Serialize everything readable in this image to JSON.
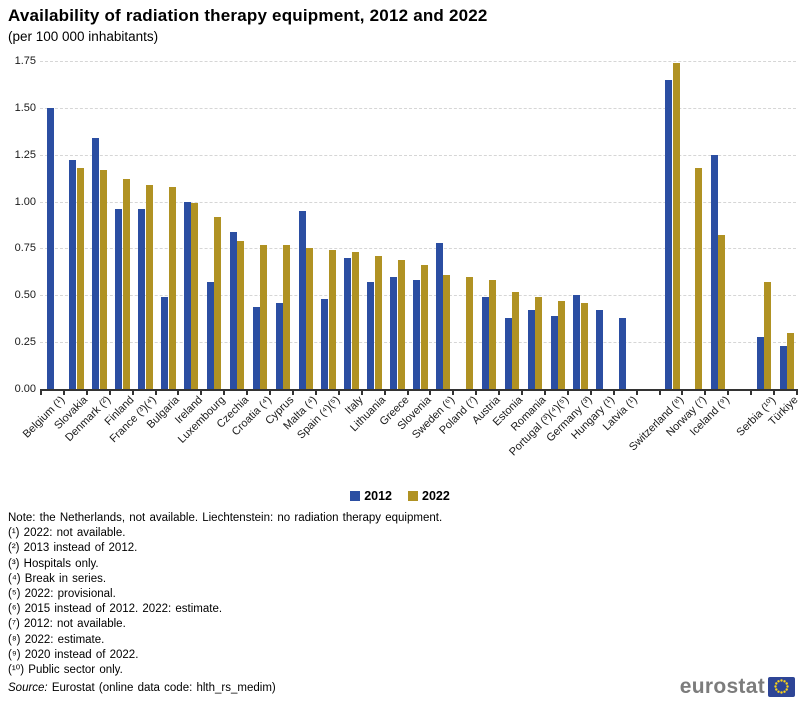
{
  "title": "Availability of radiation therapy equipment, 2012 and 2022",
  "subtitle": "(per 100 000 inhabitants)",
  "colors": {
    "series2012": "#2B4EA2",
    "series2022": "#B09223",
    "grid": "#d6d6d6",
    "axis": "#333333",
    "logo_gray": "#7c7c7c",
    "flag_blue": "#2E4596",
    "star_yellow": "#FFD617"
  },
  "chart_data": {
    "type": "bar",
    "title": "Availability of radiation therapy equipment, 2012 and 2022",
    "subtitle": "(per 100 000 inhabitants)",
    "xlabel": "",
    "ylabel": "",
    "ylim": [
      0,
      1.75
    ],
    "y_ticks": [
      0,
      0.25,
      0.5,
      0.75,
      1,
      1.25,
      1.5,
      1.75
    ],
    "y_tick_labels": [
      "0.00",
      "0.25",
      "0.50",
      "0.75",
      "1.00",
      "1.25",
      "1.50",
      "1.75"
    ],
    "grid": true,
    "legend_position": "bottom",
    "categories": [
      "Belgium (¹)",
      "Slovakia",
      "Denmark (²)",
      "Finland",
      "France (³)(⁴)",
      "Bulgaria",
      "Ireland",
      "Luxembourg",
      "Czechia",
      "Croatia (⁴)",
      "Cyprus",
      "Malta (⁴)",
      "Spain (⁴)(⁵)",
      "Italy",
      "Lithuania",
      "Greece",
      "Slovenia",
      "Sweden (⁶)",
      "Poland (⁷)",
      "Austria",
      "Estonia",
      "Romania",
      "Portugal (³)(⁴)(⁵)",
      "Germany (³)",
      "Hungary (¹)",
      "Latvia (¹)",
      "Switzerland (⁸)",
      "Norway (⁷)",
      "Iceland (⁹)",
      "Serbia (¹⁰)",
      "Türkiye"
    ],
    "slots": [
      0,
      1,
      2,
      3,
      4,
      5,
      6,
      7,
      8,
      9,
      10,
      11,
      12,
      13,
      14,
      15,
      16,
      17,
      18,
      19,
      20,
      21,
      22,
      23,
      24,
      25,
      27,
      28,
      29,
      31,
      32
    ],
    "series": [
      {
        "name": "2012",
        "color_key": "series2012",
        "values": [
          1.5,
          1.22,
          1.34,
          0.96,
          0.96,
          0.49,
          1.0,
          0.57,
          0.84,
          0.44,
          0.46,
          0.95,
          0.48,
          0.7,
          0.57,
          0.6,
          0.58,
          0.78,
          null,
          0.49,
          0.38,
          0.42,
          0.39,
          0.5,
          0.42,
          0.38,
          1.65,
          null,
          1.25,
          0.28,
          0.23
        ]
      },
      {
        "name": "2022",
        "color_key": "series2022",
        "values": [
          null,
          1.18,
          1.17,
          1.12,
          1.09,
          1.08,
          0.99,
          0.92,
          0.79,
          0.77,
          0.77,
          0.75,
          0.74,
          0.73,
          0.71,
          0.69,
          0.66,
          0.61,
          0.6,
          0.58,
          0.52,
          0.49,
          0.47,
          0.46,
          null,
          null,
          1.74,
          1.18,
          0.82,
          0.57,
          0.3
        ]
      }
    ]
  },
  "legend": {
    "items": [
      {
        "label": "2012",
        "color_key": "series2012"
      },
      {
        "label": "2022",
        "color_key": "series2022"
      }
    ]
  },
  "notes": [
    "Note: the Netherlands,  not available. Liechtenstein: no radiation therapy equipment.",
    "(¹) 2022: not available.",
    "(²) 2013 instead of 2012.",
    "(³) Hospitals only.",
    "(⁴) Break in series.",
    "(⁵) 2022: provisional.",
    "(⁶) 2015 instead of 2012. 2022: estimate.",
    "(⁷) 2012: not available.",
    "(⁸) 2022: estimate.",
    "(⁹) 2020 instead of 2022.",
    "(¹⁰) Public sector only."
  ],
  "source": {
    "label": "Source:",
    "text": " Eurostat (online data code: hlth_rs_medim)"
  },
  "logo": {
    "text": "eurostat"
  }
}
